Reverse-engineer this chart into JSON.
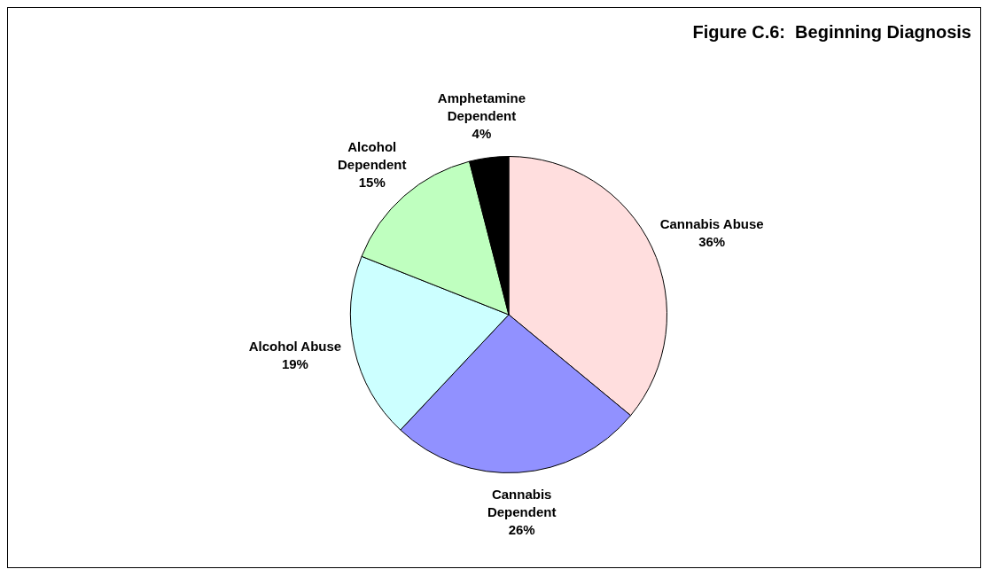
{
  "chart_data": {
    "type": "pie",
    "title": "Figure C.6:  Beginning Diagnosis",
    "categories": [
      "Cannabis Abuse",
      "Cannabis Dependent",
      "Alcohol Abuse",
      "Alcohol Dependent",
      "Amphetamine Dependent"
    ],
    "values": [
      36,
      26,
      19,
      15,
      4
    ],
    "value_labels": [
      "36%",
      "26%",
      "19%",
      "15%",
      "4%"
    ],
    "colors": [
      "#ffdede",
      "#9191ff",
      "#ccffff",
      "#bfffbf",
      "#000000"
    ],
    "legend": false
  }
}
